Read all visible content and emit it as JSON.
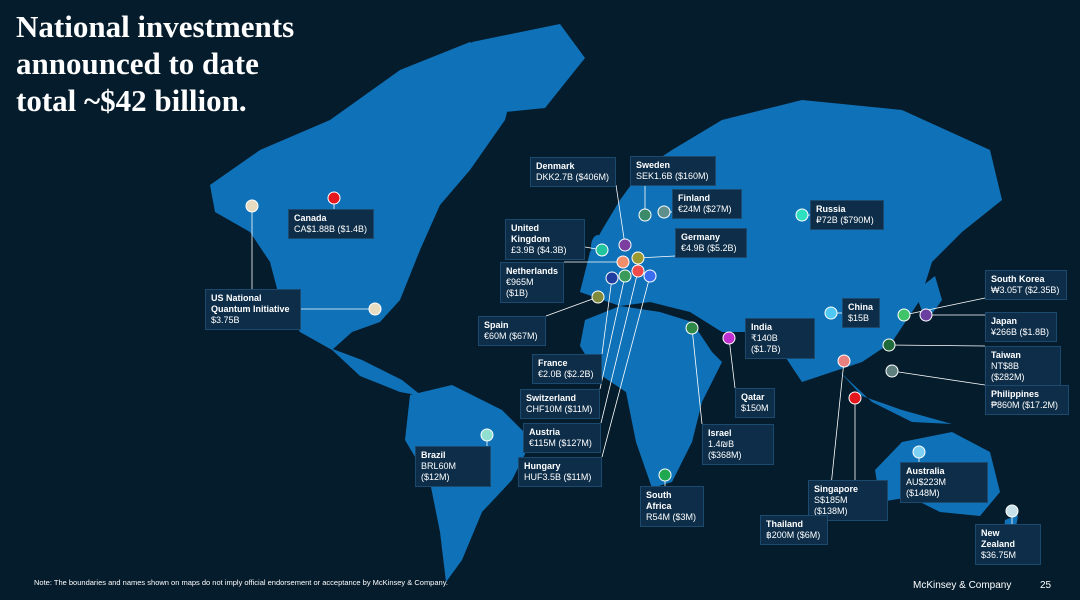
{
  "title": [
    "National investments",
    "announced to date",
    "total ~$42 billion."
  ],
  "investments": [
    {
      "country": "Canada",
      "amount": "CA$1.88B ($1.4B)",
      "color": "#e5171e"
    },
    {
      "country": "US National Quantum Initiative",
      "amount": "$3.75B",
      "color": "#e8dcc0"
    },
    {
      "country": "Denmark",
      "amount": "DKK2.7B ($406M)",
      "color": "#7b3fa0"
    },
    {
      "country": "Sweden",
      "amount": "SEK1.6B ($160M)",
      "color": "#3b8b6b"
    },
    {
      "country": "Finland",
      "amount": "€24M ($27M)",
      "color": "#5f8f8c"
    },
    {
      "country": "United Kingdom",
      "amount": "£3.9B ($4.3B)",
      "color": "#22c49e"
    },
    {
      "country": "Germany",
      "amount": "€4.9B ($5.2B)",
      "color": "#9b9a30"
    },
    {
      "country": "Netherlands",
      "amount": "€965M ($1B)",
      "color": "#f08d6a"
    },
    {
      "country": "Spain",
      "amount": "€60M ($67M)",
      "color": "#7f8a3a"
    },
    {
      "country": "France",
      "amount": "€2.0B ($2.2B)",
      "color": "#1f3ea0"
    },
    {
      "country": "Switzerland",
      "amount": "CHF10M ($11M)",
      "color": "#3a9a5a"
    },
    {
      "country": "Austria",
      "amount": "€115M ($127M)",
      "color": "#f04a4a"
    },
    {
      "country": "Hungary",
      "amount": "HUF3.5B ($11M)",
      "color": "#3b6ef0"
    },
    {
      "country": "Russia",
      "amount": "₽72B ($790M)",
      "color": "#2fe0c0"
    },
    {
      "country": "India",
      "amount": "₹140B ($1.7B)",
      "color": "#f5b71a"
    },
    {
      "country": "Qatar",
      "amount": "$150M",
      "color": "#c02fd0"
    },
    {
      "country": "Israel",
      "amount": "1.4₪B ($368M)",
      "color": "#2f8a4a"
    },
    {
      "country": "China",
      "amount": "$15B",
      "color": "#4fc8f5"
    },
    {
      "country": "South Korea",
      "amount": "₩3.05T ($2.35B)",
      "color": "#3fc46a"
    },
    {
      "country": "Japan",
      "amount": "¥266B ($1.8B)",
      "color": "#6a3fa0"
    },
    {
      "country": "Taiwan",
      "amount": "NT$8B ($282M)",
      "color": "#1f6a3a"
    },
    {
      "country": "Philippines",
      "amount": "₱860M ($17.2M)",
      "color": "#5f7f7f"
    },
    {
      "country": "Singapore",
      "amount": "S$185M ($138M)",
      "color": "#e5171e"
    },
    {
      "country": "Thailand",
      "amount": "฿200M ($6M)",
      "color": "#e88080"
    },
    {
      "country": "Australia",
      "amount": "AU$223M ($148M)",
      "color": "#7fd0f5"
    },
    {
      "country": "New Zealand",
      "amount": "$36.75M",
      "color": "#c8e0e8"
    },
    {
      "country": "South Africa",
      "amount": "R54M ($3M)",
      "color": "#1fa850"
    },
    {
      "country": "Brazil",
      "amount": "BRL60M ($12M)",
      "color": "#8fe0d0"
    }
  ],
  "note": "Note: The boundaries and names shown on maps do not imply official endorsement or acceptance by McKinsey & Company.",
  "footer": {
    "brand": "McKinsey & Company",
    "page": "25"
  }
}
